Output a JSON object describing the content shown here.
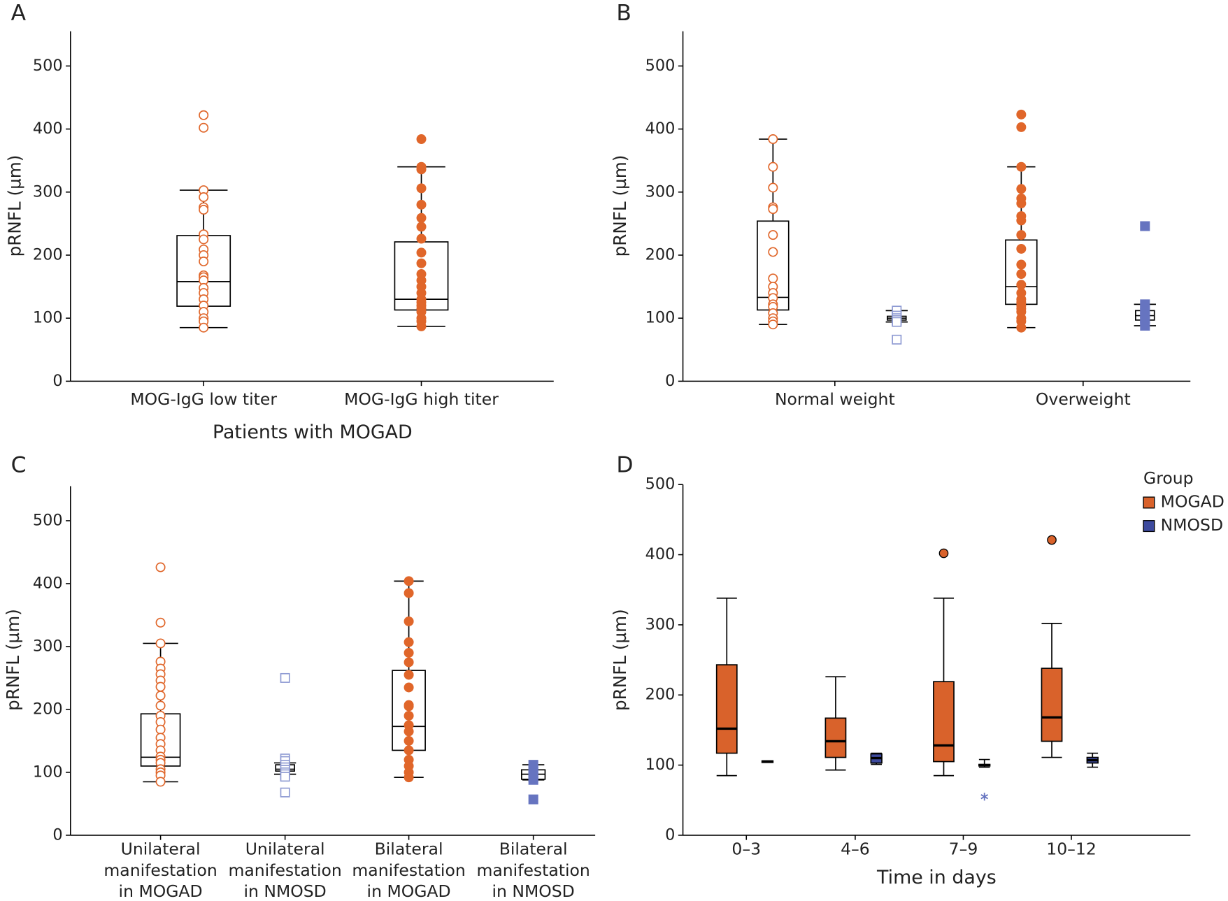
{
  "chart_data": [
    {
      "type": "box",
      "panel": "A",
      "ylabel": "pRNFL (µm)",
      "xlabel": "Patients with MOGAD",
      "categories": [
        [
          "MOG-IgG low titer"
        ],
        [
          "MOG-IgG high titer"
        ]
      ],
      "ylim": [
        0,
        555
      ],
      "yticks": [
        0,
        100,
        200,
        300,
        400,
        500
      ],
      "boxes": [
        [
          {
            "color": "#e0662a",
            "marker": "circle",
            "filled": false,
            "stats": [
              85,
              119,
              158,
              231,
              303
            ],
            "points": [
              422,
              402,
              303,
              292,
              276,
              272,
              233,
              225,
              209,
              200,
              190,
              168,
              165,
              160,
              148,
              140,
              130,
              120,
              110,
              100,
              95,
              85
            ]
          }
        ],
        [
          {
            "color": "#e0662a",
            "marker": "circle",
            "filled": true,
            "stats": [
              87,
              113,
              130,
              221,
              340
            ],
            "points": [
              384,
              340,
              336,
              306,
              280,
              259,
              245,
              226,
              204,
              187,
              170,
              160,
              150,
              140,
              130,
              125,
              120,
              115,
              110,
              100,
              95,
              87
            ]
          }
        ]
      ]
    },
    {
      "type": "box",
      "panel": "B",
      "ylabel": "pRNFL (µm)",
      "categories": [
        [
          "Normal weight"
        ],
        [
          "Overweight"
        ]
      ],
      "ylim": [
        0,
        555
      ],
      "yticks": [
        0,
        100,
        200,
        300,
        400,
        500
      ],
      "boxes": [
        [
          {
            "color": "#e0662a",
            "marker": "circle",
            "filled": false,
            "stats": [
              90,
              113,
              133,
              254,
              384
            ],
            "points": [
              384,
              340,
              307,
              276,
              273,
              232,
              205,
              163,
              150,
              140,
              132,
              122,
              118,
              108,
              100,
              95,
              90
            ]
          },
          {
            "color": "#8f9bd3",
            "marker": "square",
            "filled": false,
            "stats": [
              94,
              97,
              100,
              103,
              112
            ],
            "points": [
              112,
              104,
              100,
              97,
              94,
              66
            ]
          }
        ],
        [
          {
            "color": "#e0662a",
            "marker": "circle",
            "filled": true,
            "stats": [
              85,
              122,
              150,
              224,
              340
            ],
            "points": [
              423,
              403,
              340,
              305,
              290,
              282,
              262,
              255,
              232,
              210,
              185,
              170,
              153,
              140,
              130,
              125,
              120,
              115,
              110,
              100,
              95,
              85
            ]
          },
          {
            "color": "#6674c0",
            "marker": "square",
            "filled": true,
            "stats": [
              88,
              97,
              104,
              112,
              122
            ],
            "points": [
              246,
              122,
              115,
              108,
              100,
              95,
              88
            ]
          }
        ]
      ]
    },
    {
      "type": "box",
      "panel": "C",
      "ylabel": "pRNFL (µm)",
      "categories": [
        [
          "Unilateral",
          "manifestation",
          "in MOGAD"
        ],
        [
          "Unilateral",
          "manifestation",
          "in NMOSD"
        ],
        [
          "Bilateral",
          "manifestation",
          "in MOGAD"
        ],
        [
          "Bilateral",
          "manifestation",
          "in NMOSD"
        ]
      ],
      "ylim": [
        0,
        555
      ],
      "yticks": [
        0,
        100,
        200,
        300,
        400,
        500
      ],
      "boxes": [
        [
          {
            "color": "#e0662a",
            "marker": "circle",
            "filled": false,
            "stats": [
              85,
              110,
              124,
              193,
              305
            ],
            "points": [
              426,
              338,
              305,
              276,
              265,
              256,
              246,
              236,
              222,
              206,
              190,
              180,
              168,
              155,
              145,
              135,
              125,
              120,
              115,
              105,
              100,
              95,
              85
            ]
          }
        ],
        [
          {
            "color": "#8f9bd3",
            "marker": "square",
            "filled": false,
            "stats": [
              97,
              102,
              105,
              112,
              115
            ],
            "points": [
              250,
              122,
              118,
              112,
              108,
              104,
              100,
              97,
              93,
              68
            ]
          }
        ],
        [
          {
            "color": "#e0662a",
            "marker": "circle",
            "filled": true,
            "stats": [
              92,
              135,
              173,
              262,
              404
            ],
            "points": [
              404,
              385,
              340,
              307,
              290,
              275,
              255,
              235,
              207,
              205,
              190,
              175,
              165,
              150,
              135,
              120,
              110,
              100,
              92
            ]
          }
        ],
        [
          {
            "color": "#6674c0",
            "marker": "square",
            "filled": true,
            "stats": [
              88,
              89,
              97,
              104,
              112
            ],
            "points": [
              112,
              105,
              98,
              92,
              88,
              57
            ]
          }
        ]
      ]
    },
    {
      "type": "box",
      "panel": "D",
      "ylabel": "pRNFL (µm)",
      "xlabel": "Time in days",
      "categories": [
        [
          "0–3"
        ],
        [
          "4–6"
        ],
        [
          "7–9"
        ],
        [
          "10–12"
        ]
      ],
      "ylim": [
        0,
        500
      ],
      "yticks": [
        0,
        100,
        200,
        300,
        400,
        500
      ],
      "legend": {
        "title": "Group",
        "items": [
          {
            "name": "MOGAD",
            "color": "#d9622b"
          },
          {
            "name": "NMOSD",
            "color": "#3d4a9e"
          }
        ]
      },
      "boxes": [
        [
          {
            "color": "#d9622b",
            "stats": [
              85,
              117,
              152,
              243,
              338
            ]
          },
          {
            "color": "#3d4a9e",
            "stats": [
              104,
              104,
              105,
              106,
              106
            ]
          }
        ],
        [
          {
            "color": "#d9622b",
            "stats": [
              93,
              111,
              134,
              167,
              226
            ]
          },
          {
            "color": "#3d4a9e",
            "stats": [
              101,
              103,
              110,
              116,
              117
            ]
          }
        ],
        [
          {
            "color": "#d9622b",
            "stats": [
              85,
              105,
              128,
              219,
              338
            ],
            "outliers": [
              402
            ]
          },
          {
            "color": "#3d4a9e",
            "stats": [
              97,
              99,
              100,
              101,
              108
            ],
            "extremes": [
              55
            ]
          }
        ],
        [
          {
            "color": "#d9622b",
            "stats": [
              111,
              134,
              168,
              238,
              302
            ],
            "outliers": [
              421
            ]
          },
          {
            "color": "#3d4a9e",
            "stats": [
              97,
              103,
              107,
              111,
              117
            ]
          }
        ]
      ]
    }
  ]
}
